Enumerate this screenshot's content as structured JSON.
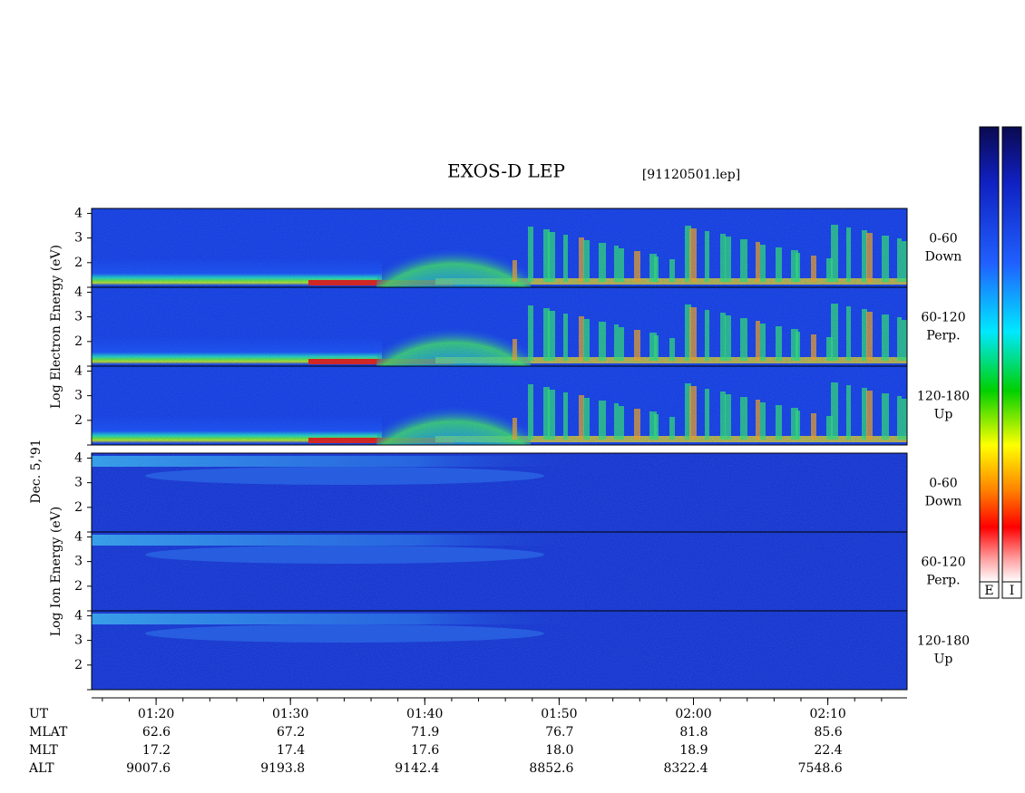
{
  "chart_data": {
    "type": "spectrogram",
    "title": "EXOS-D LEP",
    "subtitle": "[91120501.lep]",
    "date_label": "Dec. 5,'91",
    "groups": [
      {
        "ylabel": "Log Electron Energy (eV)",
        "colorbar_label": "E",
        "panels": [
          {
            "pitch": "0-60",
            "direction": "Down"
          },
          {
            "pitch": "60-120",
            "direction": "Perp."
          },
          {
            "pitch": "120-180",
            "direction": "Up"
          }
        ]
      },
      {
        "ylabel": "Log Ion Energy (eV)",
        "colorbar_label": "I",
        "panels": [
          {
            "pitch": "0-60",
            "direction": "Down"
          },
          {
            "pitch": "60-120",
            "direction": "Perp."
          },
          {
            "pitch": "120-180",
            "direction": "Up"
          }
        ]
      }
    ],
    "ylim": [
      1,
      4.2
    ],
    "yticks": [
      2,
      3,
      4
    ],
    "xlim": [
      75.2,
      135.9
    ],
    "xticks": [
      {
        "value": 80,
        "label": "01:20"
      },
      {
        "value": 90,
        "label": "01:30"
      },
      {
        "value": 100,
        "label": "01:40"
      },
      {
        "value": 110,
        "label": "01:50"
      },
      {
        "value": 120,
        "label": "02:00"
      },
      {
        "value": 130,
        "label": "02:10"
      }
    ],
    "ephemeris": [
      {
        "name": "UT",
        "values": []
      },
      {
        "name": "MLAT",
        "values": [
          "62.6",
          "67.2",
          "71.9",
          "76.7",
          "81.8",
          "85.6"
        ]
      },
      {
        "name": "MLT",
        "values": [
          "17.2",
          "17.4",
          "17.6",
          "18.0",
          "18.9",
          "22.4"
        ]
      },
      {
        "name": "ALT",
        "values": [
          "9007.6",
          "9193.8",
          "9142.4",
          "8852.6",
          "8322.4",
          "7548.6"
        ]
      }
    ]
  }
}
